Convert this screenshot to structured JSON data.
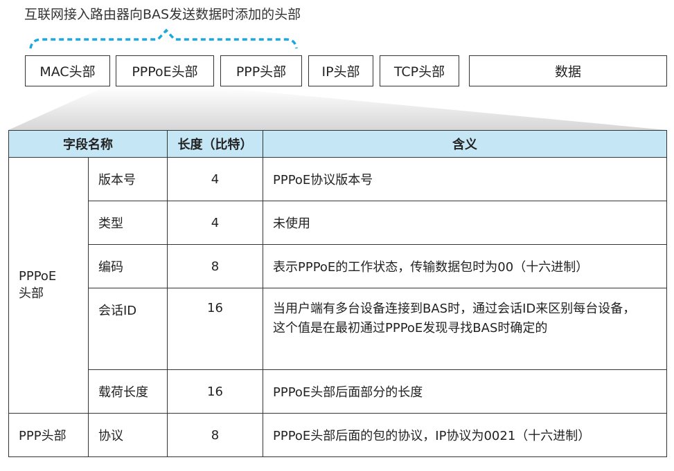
{
  "title": "互联网接入路由器向BAS发送数据时添加的头部",
  "headers": [
    "MAC头部",
    "PPPoE头部",
    "PPP头部",
    "IP头部",
    "TCP头部",
    "数据"
  ],
  "accent_color": "#1aa8e0",
  "table": {
    "columns": [
      "字段名称",
      "长度（比特）",
      "含义"
    ],
    "groups": [
      {
        "name": "PPPoE\n头部",
        "rows": [
          {
            "field": "版本号",
            "bits": "4",
            "meaning": "PPPoE协议版本号"
          },
          {
            "field": "类型",
            "bits": "4",
            "meaning": "未使用"
          },
          {
            "field": "编码",
            "bits": "8",
            "meaning": "表示PPPoE的工作状态，传输数据包时为00（十六进制）"
          },
          {
            "field": "会话ID",
            "bits": "16",
            "meaning": "当用户端有多台设备连接到BAS时，通过会话ID来区别每台设备，这个值是在最初通过PPPoE发现寻找BAS时确定的"
          },
          {
            "field": "载荷长度",
            "bits": "16",
            "meaning": "PPPoE头部后面部分的长度"
          }
        ]
      },
      {
        "name": "PPP头部",
        "rows": [
          {
            "field": "协议",
            "bits": "8",
            "meaning": "PPPoE头部后面的包的协议，IP协议为0021（十六进制）"
          }
        ]
      }
    ]
  }
}
